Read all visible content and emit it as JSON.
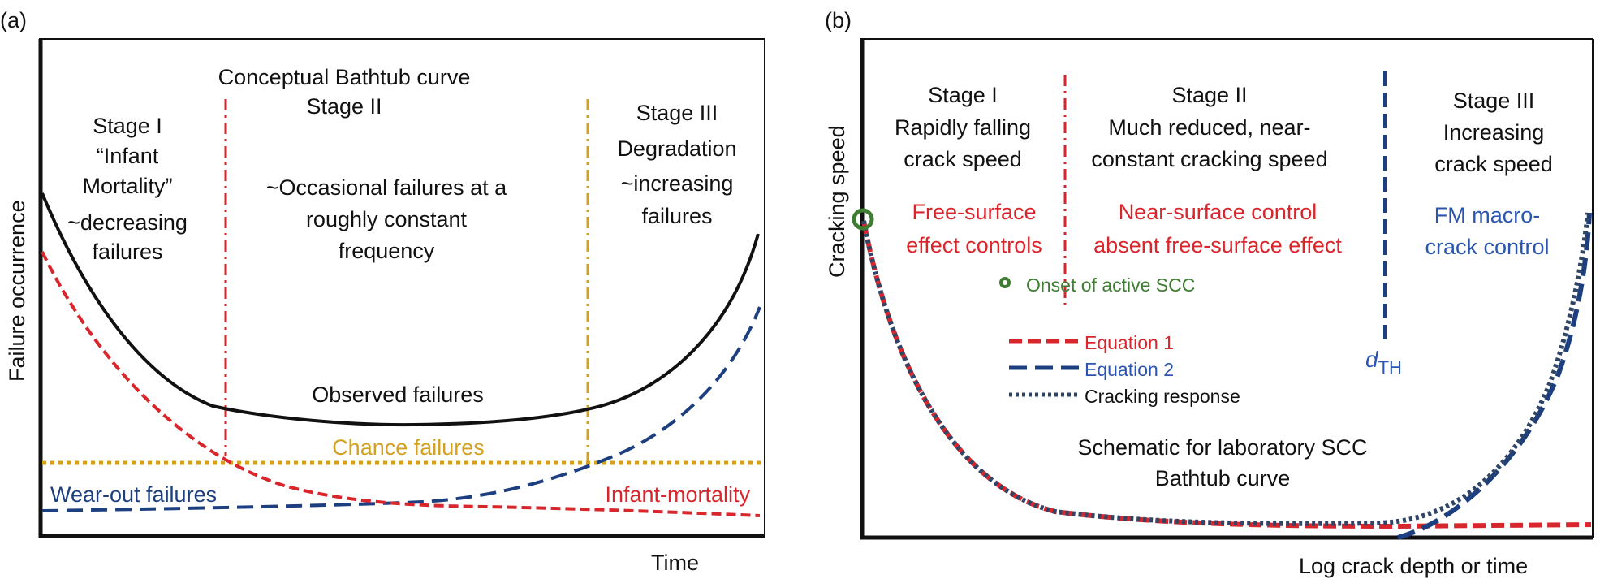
{
  "colors": {
    "black": "#111111",
    "red": "#d8262c",
    "gold": "#d4a021",
    "navy": "#1d3f7f",
    "blue_text": "#2a55b0",
    "green": "#3f7d32"
  },
  "panel_a": {
    "tag": "(a)",
    "title": "Conceptual Bathtub curve",
    "y_axis_label": "Failure occurrence",
    "x_axis_label": "Time",
    "stage1": {
      "l1": "Stage I",
      "l2": "“Infant",
      "l3": "Mortality”",
      "l4": "~decreasing",
      "l5": "failures"
    },
    "stage2": {
      "l1": "Stage II",
      "l2": "~Occasional failures at a",
      "l3": "roughly constant",
      "l4": "frequency"
    },
    "stage3": {
      "l1": "Stage III",
      "l2": "Degradation",
      "l3": "~increasing",
      "l4": "failures"
    },
    "curve_labels": {
      "observed": "Observed failures",
      "chance": "Chance failures",
      "wear_out": "Wear-out failures",
      "infant": "Infant-mortality"
    }
  },
  "panel_b": {
    "tag": "(b)",
    "y_axis_label": "Cracking speed",
    "x_axis_label": "Log crack depth or time",
    "stage1": {
      "l1": "Stage I",
      "l2": "Rapidly falling",
      "l3": "crack speed",
      "c1": "Free-surface",
      "c2": "effect controls"
    },
    "stage2": {
      "l1": "Stage II",
      "l2": "Much reduced, near-",
      "l3": "constant cracking speed",
      "c1": "Near-surface control",
      "c2": "absent free-surface effect"
    },
    "stage3": {
      "l1": "Stage III",
      "l2": "Increasing",
      "l3": "crack speed",
      "c1": "FM macro-",
      "c2": "crack control"
    },
    "threshold_label": "d",
    "threshold_sub": "TH",
    "legend": {
      "onset": "Onset of active SCC",
      "eq1": "Equation 1",
      "eq2": "Equation 2",
      "response": "Cracking response"
    },
    "schematic": {
      "l1": "Schematic for laboratory SCC",
      "l2": "Bathtub curve"
    }
  }
}
